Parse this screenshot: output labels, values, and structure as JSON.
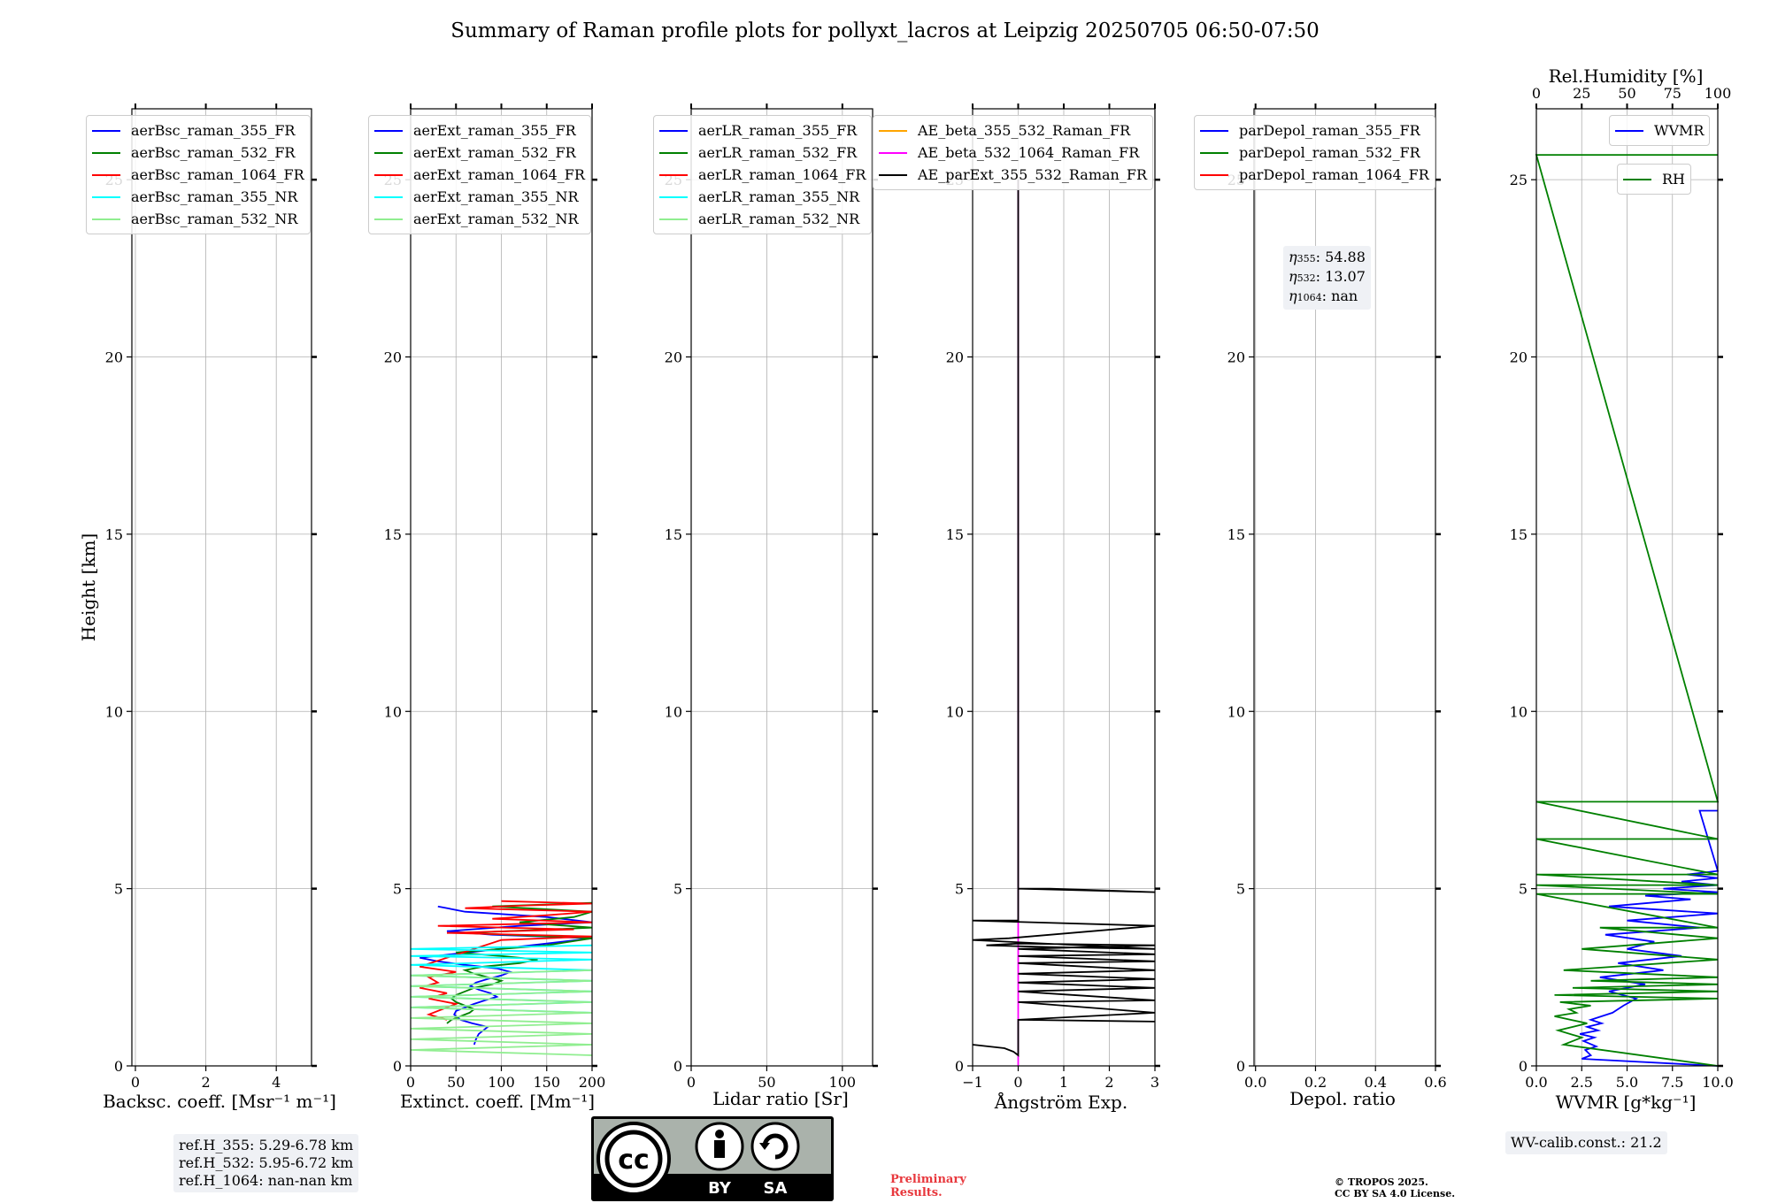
{
  "title": "Summary of Raman profile plots for pollyxt_lacros at Leipzig 20250705 06:50-07:50",
  "colors": {
    "blue": "#0000ff",
    "green": "#008000",
    "red": "#ff0000",
    "cyan": "#00ffff",
    "lightgreen": "#90ee90",
    "orange": "#ffa500",
    "magenta": "#ff00ff",
    "black": "#000000",
    "grid": "#b0b0b0"
  },
  "chart_data": [
    {
      "type": "line",
      "name": "backscatter",
      "xlabel": "Backsc. coeff. [Msr⁻¹ m⁻¹]",
      "ylabel": "Height [km]",
      "xlim": [
        -0.1,
        5
      ],
      "ylim": [
        0,
        27
      ],
      "xticks": [
        0,
        2,
        4
      ],
      "yticks": [
        0,
        5,
        10,
        15,
        20,
        25
      ],
      "grid": true,
      "legend_position": "top-left",
      "series": [
        {
          "name": "aerBsc_raman_355_FR",
          "color": "#0000ff"
        },
        {
          "name": "aerBsc_raman_532_FR",
          "color": "#008000"
        },
        {
          "name": "aerBsc_raman_1064_FR",
          "color": "#ff0000"
        },
        {
          "name": "aerBsc_raman_355_NR",
          "color": "#00ffff"
        },
        {
          "name": "aerBsc_raman_532_NR",
          "color": "#90ee90"
        }
      ],
      "annotation": [
        "ref.H_355: 5.29-6.78 km",
        "ref.H_532: 5.95-6.72 km",
        "ref.H_1064: nan-nan km"
      ]
    },
    {
      "type": "line",
      "name": "extinction",
      "xlabel": "Extinct. coeff. [Mm⁻¹]",
      "xlim": [
        0,
        200
      ],
      "ylim": [
        0,
        27
      ],
      "xticks": [
        0,
        50,
        100,
        150,
        200
      ],
      "yticks": [
        0,
        5,
        10,
        15,
        20,
        25
      ],
      "grid": true,
      "legend_position": "top-left",
      "series": [
        {
          "name": "aerExt_raman_355_FR",
          "color": "#0000ff",
          "x": [
            70,
            72,
            75,
            80,
            85,
            68,
            55,
            48,
            50,
            60,
            70,
            82,
            95,
            88,
            75,
            66,
            72,
            85,
            100,
            110,
            95,
            60,
            30,
            10,
            80,
            150,
            200,
            90,
            40,
            120,
            200,
            150,
            60,
            30
          ],
          "y": [
            0.6,
            0.75,
            0.9,
            1.0,
            1.1,
            1.2,
            1.3,
            1.45,
            1.55,
            1.65,
            1.75,
            1.85,
            1.95,
            2.05,
            2.15,
            2.25,
            2.35,
            2.45,
            2.55,
            2.65,
            2.75,
            2.85,
            2.95,
            3.05,
            3.25,
            3.45,
            3.6,
            3.7,
            3.8,
            3.95,
            4.05,
            4.2,
            4.35,
            4.5
          ]
        },
        {
          "name": "aerExt_raman_532_FR",
          "color": "#008000",
          "x": [
            40,
            45,
            55,
            65,
            70,
            60,
            50,
            45,
            50,
            60,
            70,
            90,
            100,
            85,
            70,
            60,
            80,
            120,
            140,
            100,
            50,
            150,
            200,
            60,
            200,
            120,
            180,
            200,
            90,
            200
          ],
          "y": [
            1.2,
            1.3,
            1.4,
            1.5,
            1.6,
            1.7,
            1.8,
            1.9,
            2.0,
            2.1,
            2.2,
            2.3,
            2.4,
            2.5,
            2.6,
            2.7,
            2.8,
            2.9,
            3.0,
            3.1,
            3.2,
            3.4,
            3.6,
            3.75,
            3.9,
            4.05,
            4.2,
            4.35,
            4.5,
            4.6
          ]
        },
        {
          "name": "aerExt_raman_1064_FR",
          "color": "#ff0000",
          "x": [
            40,
            20,
            35,
            50,
            20,
            40,
            10,
            30,
            20,
            50,
            10,
            100,
            200,
            40,
            180,
            30,
            200,
            90,
            150,
            200,
            60,
            120,
            200,
            100
          ],
          "y": [
            1.3,
            1.45,
            1.6,
            1.75,
            1.9,
            2.05,
            2.2,
            2.35,
            2.5,
            2.65,
            2.8,
            3.55,
            3.65,
            3.75,
            3.85,
            3.95,
            4.05,
            4.15,
            4.25,
            4.35,
            4.45,
            4.52,
            4.58,
            4.65
          ]
        },
        {
          "name": "aerExt_raman_355_NR",
          "color": "#00ffff",
          "x": [
            200,
            0,
            200,
            0,
            200,
            0,
            200,
            0,
            200,
            0,
            200,
            0,
            200,
            0,
            200
          ],
          "y": [
            1.5,
            1.65,
            1.8,
            1.95,
            2.1,
            2.25,
            2.4,
            2.55,
            2.7,
            2.85,
            3.0,
            3.1,
            3.2,
            3.3,
            3.4
          ]
        },
        {
          "name": "aerExt_raman_532_NR",
          "color": "#90ee90",
          "x": [
            200,
            0,
            200,
            0,
            200,
            0,
            200,
            0,
            200,
            0,
            200,
            0,
            200,
            0,
            200,
            0,
            200
          ],
          "y": [
            0.3,
            0.45,
            0.6,
            0.75,
            0.9,
            1.05,
            1.2,
            1.35,
            1.5,
            1.65,
            1.8,
            1.95,
            2.1,
            2.25,
            2.4,
            2.55,
            2.7
          ]
        }
      ]
    },
    {
      "type": "line",
      "name": "lidar-ratio",
      "xlabel": "Lidar ratio [Sr]",
      "xlim": [
        0,
        120
      ],
      "ylim": [
        0,
        27
      ],
      "xticks": [
        0,
        50,
        100
      ],
      "yticks": [
        0,
        5,
        10,
        15,
        20,
        25
      ],
      "grid": true,
      "legend_position": "top-left",
      "series": [
        {
          "name": "aerLR_raman_355_FR",
          "color": "#0000ff"
        },
        {
          "name": "aerLR_raman_532_FR",
          "color": "#008000"
        },
        {
          "name": "aerLR_raman_1064_FR",
          "color": "#ff0000"
        },
        {
          "name": "aerLR_raman_355_NR",
          "color": "#00ffff"
        },
        {
          "name": "aerLR_raman_532_NR",
          "color": "#90ee90"
        }
      ]
    },
    {
      "type": "line",
      "name": "angstrom",
      "xlabel": "Ångström Exp.",
      "xlim": [
        -1,
        3
      ],
      "ylim": [
        0,
        27
      ],
      "xticks": [
        -1,
        0,
        1,
        2,
        3
      ],
      "yticks": [
        0,
        5,
        10,
        15,
        20,
        25
      ],
      "grid": true,
      "legend_position": "top-right",
      "series": [
        {
          "name": "AE_beta_355_532_Raman_FR",
          "color": "#ffa500"
        },
        {
          "name": "AE_beta_532_1064_Raman_FR",
          "color": "#ff00ff",
          "x": [
            0,
            0
          ],
          "y": [
            0,
            25
          ]
        },
        {
          "name": "AE_parExt_355_532_Raman_FR",
          "color": "#000000",
          "x": [
            -1,
            -0.3,
            -0.1,
            0,
            0,
            0,
            3,
            0,
            3,
            0,
            3,
            0,
            3,
            0,
            3,
            0,
            3,
            0,
            3,
            0,
            3,
            0,
            3,
            0,
            -0.7,
            0.8,
            3,
            -1,
            -0.2,
            3,
            -1,
            -1,
            0,
            0,
            0.7,
            3,
            0,
            0,
            0
          ],
          "y": [
            0.6,
            0.5,
            0.4,
            0.3,
            1.3,
            1.3,
            1.25,
            1.3,
            1.5,
            1.8,
            1.85,
            2.1,
            2.2,
            2.35,
            2.45,
            2.6,
            2.7,
            2.9,
            2.95,
            3.1,
            3.15,
            3.3,
            3.4,
            3.45,
            3.4,
            3.35,
            3.3,
            3.55,
            3.6,
            3.95,
            4.1,
            4.1,
            4.1,
            5.0,
            5.0,
            4.9,
            5.0,
            20,
            25
          ]
        }
      ]
    },
    {
      "type": "line",
      "name": "depolarization",
      "xlabel": "Depol. ratio",
      "xlim": [
        -0.005,
        0.6
      ],
      "ylim": [
        0,
        27
      ],
      "xticks": [
        0.0,
        0.2,
        0.4,
        0.6
      ],
      "xticklabels": [
        "0.0",
        "0.2",
        "0.4",
        "0.6"
      ],
      "yticks": [
        0,
        5,
        10,
        15,
        20,
        25
      ],
      "grid": true,
      "legend_position": "top-left",
      "series": [
        {
          "name": "parDepol_raman_355_FR",
          "color": "#0000ff"
        },
        {
          "name": "parDepol_raman_532_FR",
          "color": "#008000"
        },
        {
          "name": "parDepol_raman_1064_FR",
          "color": "#ff0000"
        }
      ],
      "annotation": {
        "eta355": "54.88",
        "eta532": "13.07",
        "eta1064": "nan"
      }
    },
    {
      "type": "line",
      "name": "water-vapor",
      "xlabel": "WVMR [g*kg⁻¹]",
      "top_xlabel": "Rel.Humidity [%]",
      "xlim": [
        0,
        10
      ],
      "ylim": [
        0,
        27
      ],
      "xticks": [
        0,
        2.5,
        5,
        7.5,
        10
      ],
      "xticklabels": [
        "0.0",
        "2.5",
        "5.0",
        "7.5",
        "10.0"
      ],
      "top_xlim": [
        0,
        100
      ],
      "top_xticks": [
        0,
        25,
        50,
        75,
        100
      ],
      "yticks": [
        0,
        5,
        10,
        15,
        20,
        25
      ],
      "grid": true,
      "series": [
        {
          "name": "WVMR",
          "color": "#0000ff",
          "x": [
            10,
            2.5,
            3.0,
            2.7,
            3.3,
            2.6,
            3.2,
            2.4,
            3.4,
            2.8,
            3.6,
            3.0,
            4.2,
            4.8,
            5.5,
            4.0,
            6.0,
            3.5,
            7.0,
            4.5,
            8.0,
            5.0,
            6.5,
            3.8,
            9.0,
            5.0,
            10,
            4.0,
            8.5,
            6.0,
            10,
            7.0,
            10,
            8.0,
            10,
            8.3,
            10,
            9.0,
            10
          ],
          "y": [
            0,
            0.2,
            0.3,
            0.45,
            0.55,
            0.7,
            0.8,
            0.9,
            1.0,
            1.1,
            1.2,
            1.3,
            1.5,
            1.7,
            1.9,
            2.1,
            2.3,
            2.5,
            2.7,
            2.9,
            3.1,
            3.3,
            3.5,
            3.7,
            3.9,
            4.1,
            4.3,
            4.5,
            4.7,
            4.8,
            4.9,
            5.0,
            5.1,
            5.2,
            5.3,
            5.4,
            5.5,
            7.2,
            7.2
          ]
        },
        {
          "name": "RH",
          "color": "#008000",
          "x": [
            10,
            1.5,
            2.5,
            1.2,
            2.8,
            1.0,
            2.2,
            1.8,
            3.0,
            1.3,
            10,
            1.0,
            10,
            2.0,
            10,
            3.0,
            10,
            1.5,
            10,
            2.5,
            10,
            3.5,
            10,
            0,
            10,
            0,
            10,
            0,
            10,
            0,
            10,
            0,
            10,
            0,
            10,
            0,
            10
          ],
          "y": [
            0,
            0.6,
            0.8,
            1.0,
            1.2,
            1.4,
            1.5,
            1.6,
            1.7,
            1.8,
            1.9,
            2.0,
            2.1,
            2.2,
            2.3,
            2.4,
            2.5,
            2.7,
            3.0,
            3.3,
            3.6,
            3.9,
            3.9,
            4.85,
            4.85,
            5.1,
            5.1,
            5.4,
            5.4,
            6.4,
            6.4,
            7.45,
            7.45,
            25.7,
            25.7,
            25.7,
            25.7
          ]
        }
      ],
      "annotation": "WV-calib.const.: 21.2"
    }
  ],
  "footer": {
    "preliminary_line1": "Preliminary",
    "preliminary_line2": "Results.",
    "tropos_line1": "© TROPOS 2025.",
    "tropos_line2": "CC BY SA 4.0 License.",
    "cc_label": "cc",
    "by_label": "BY",
    "sa_label": "SA"
  }
}
